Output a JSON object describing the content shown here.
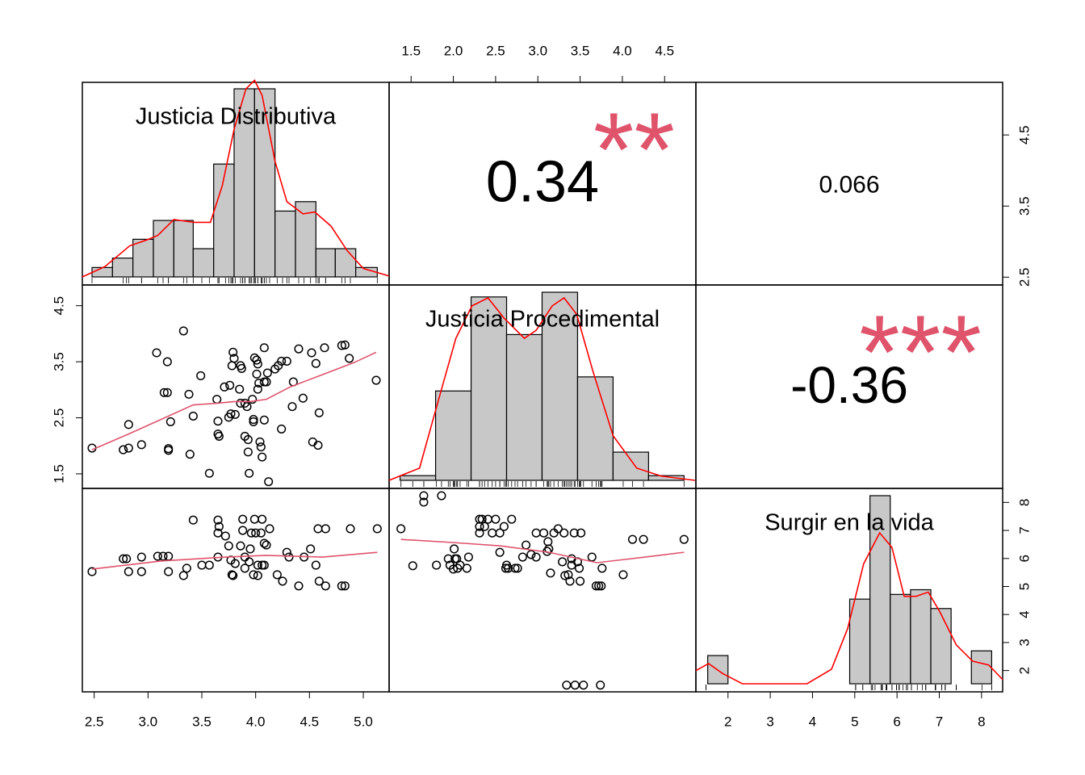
{
  "chart_data": {
    "type": "pairs",
    "bar_color": "#c8c8c8",
    "density_color": "#ff0000",
    "smooth_color": "#df536b",
    "star_color": "#df536b",
    "variables": [
      {
        "name": "Justicia Distributiva",
        "lim": [
          2.39,
          5.24
        ],
        "xticks": [
          2.5,
          {
            "value": 3,
            "label": "3.0"
          },
          3.5,
          {
            "value": 4,
            "label": "4.0"
          },
          4.5,
          {
            "value": 5,
            "label": "5.0"
          }
        ],
        "yticks": [
          2.5,
          3.5,
          4.5
        ],
        "bins": [
          2.48,
          2.67,
          2.86,
          3.05,
          3.24,
          3.42,
          3.61,
          3.8,
          3.99,
          4.18,
          4.37,
          4.56,
          4.74,
          4.93,
          5.13
        ],
        "counts": [
          1,
          2,
          4,
          6,
          6,
          3,
          12,
          20,
          20,
          7,
          8,
          3,
          3,
          1
        ],
        "density": {
          "x": [
            2.39,
            2.6,
            2.83,
            2.98,
            3.09,
            3.24,
            3.43,
            3.58,
            3.69,
            3.8,
            3.91,
            3.99,
            4.06,
            4.18,
            4.29,
            4.44,
            4.55,
            4.7,
            4.85,
            5.0,
            5.24
          ],
          "y": [
            0,
            1.1,
            3.3,
            3.9,
            4.4,
            6.1,
            5.8,
            5.8,
            9.7,
            15.7,
            20,
            20.9,
            19.3,
            12.3,
            8.0,
            6.7,
            6.9,
            5.4,
            2.8,
            0.9,
            0.1
          ]
        }
      },
      {
        "name": "Justicia Procedimental",
        "lim": [
          1.24,
          4.87
        ],
        "xticks": [
          1.5,
          {
            "value": 2,
            "label": "2.0"
          },
          2.5,
          {
            "value": 3,
            "label": "3.0"
          },
          3.5,
          {
            "value": 4,
            "label": "4.0"
          },
          4.5
        ],
        "yticks": [
          1.5,
          2.5,
          3.5,
          4.5
        ],
        "bins": [
          1.37,
          1.79,
          2.21,
          2.63,
          3.05,
          3.47,
          3.89,
          4.31,
          4.73
        ],
        "counts": [
          1,
          19,
          39,
          31,
          40,
          22,
          6,
          1
        ],
        "density": {
          "x": [
            1.24,
            1.6,
            1.84,
            2.03,
            2.22,
            2.41,
            2.6,
            2.84,
            2.98,
            3.17,
            3.31,
            3.46,
            3.65,
            3.89,
            4.17,
            4.46,
            4.86
          ],
          "y": [
            0,
            2.6,
            18.1,
            30.2,
            37.1,
            38.8,
            34.5,
            30.2,
            31.9,
            37.1,
            38.8,
            35.3,
            23.3,
            9.5,
            2.6,
            0.9,
            0
          ]
        }
      },
      {
        "name": "Surgir en la vida",
        "lim": [
          1.24,
          8.5
        ],
        "xticks": [
          2,
          3,
          4,
          5,
          6,
          7,
          8
        ],
        "yticks": [
          2,
          3,
          4,
          5,
          6,
          7,
          8
        ],
        "bins": [
          1.52,
          2.0,
          2.48,
          2.96,
          3.44,
          3.92,
          4.4,
          4.88,
          5.36,
          5.84,
          6.32,
          6.8,
          7.28,
          7.76,
          8.24
        ],
        "counts": [
          6,
          0,
          0,
          0,
          0,
          0,
          0,
          18,
          40,
          19,
          20,
          16,
          0,
          7
        ],
        "density": {
          "x": [
            1.24,
            1.54,
            1.87,
            2.34,
            3.87,
            4.45,
            4.83,
            5.21,
            5.59,
            5.88,
            6.17,
            6.45,
            6.74,
            7.02,
            7.4,
            7.79,
            8.17,
            8.5
          ],
          "y": [
            2.8,
            4.3,
            2.2,
            0,
            0,
            3.1,
            11.7,
            25.5,
            32.1,
            29.0,
            18.6,
            18.6,
            19.5,
            15.2,
            8.3,
            4.8,
            4.0,
            0.9
          ]
        }
      }
    ],
    "correlations": [
      {
        "value": 0.34,
        "stars": "**"
      },
      {
        "value": 0.066
      },
      {
        "value": -0.36,
        "stars": "***"
      }
    ],
    "scatter": [
      {
        "x": [
          2.48,
          2.77,
          2.82,
          2.82,
          2.94,
          3.08,
          3.15,
          3.18,
          3.19,
          3.19,
          3.18,
          3.21,
          3.33,
          3.38,
          3.39,
          3.42,
          3.49,
          3.57,
          3.64,
          3.65,
          3.65,
          3.66,
          3.71,
          3.75,
          3.76,
          3.77,
          3.78,
          3.79,
          3.8,
          3.81,
          3.85,
          3.86,
          3.86,
          3.87,
          3.9,
          3.9,
          3.92,
          3.93,
          3.93,
          3.94,
          3.97,
          3.98,
          3.98,
          3.99,
          4.01,
          4.01,
          4.02,
          4.02,
          4.03,
          4.04,
          4.05,
          4.06,
          4.08,
          4.08,
          4.08,
          4.1,
          4.11,
          4.12,
          4.18,
          4.21,
          4.24,
          4.24,
          4.29,
          4.34,
          4.35,
          4.4,
          4.44,
          4.52,
          4.53,
          4.56,
          4.58,
          4.59,
          4.64,
          4.8,
          4.83,
          4.87,
          5.12
        ],
        "y": [
          1.96,
          1.93,
          1.96,
          2.38,
          2.02,
          3.66,
          2.95,
          2.95,
          1.95,
          1.92,
          3.5,
          2.43,
          4.05,
          2.92,
          1.85,
          2.53,
          3.25,
          1.51,
          2.83,
          2.44,
          2.21,
          2.17,
          3.05,
          2.51,
          3.08,
          2.57,
          3.43,
          3.67,
          3.56,
          2.56,
          3.01,
          3.43,
          2.76,
          3.38,
          2.17,
          2.76,
          2.7,
          1.89,
          2.11,
          1.51,
          2.83,
          2.47,
          2.43,
          3.57,
          3.53,
          3.28,
          3.01,
          3.46,
          3.12,
          2.07,
          1.98,
          1.8,
          2.46,
          3.14,
          3.75,
          3.14,
          3.3,
          1.36,
          3.37,
          3.43,
          2.3,
          3.51,
          3.51,
          2.7,
          3.14,
          3.73,
          2.85,
          3.66,
          2.07,
          3.47,
          2.01,
          2.59,
          3.75,
          3.79,
          3.8,
          3.56,
          3.17
        ],
        "smooth": {
          "x": [
            2.48,
            2.82,
            3.12,
            3.42,
            3.65,
            3.8,
            3.95,
            4.1,
            4.32,
            4.62,
            4.92,
            5.12
          ],
          "y": [
            1.93,
            2.21,
            2.47,
            2.73,
            2.76,
            2.79,
            2.79,
            2.83,
            3.05,
            3.27,
            3.49,
            3.67
          ]
        }
      },
      {
        "x": [
          2.48,
          2.77,
          2.8,
          2.82,
          2.94,
          2.94,
          3.09,
          3.14,
          3.19,
          3.19,
          3.33,
          3.36,
          3.42,
          3.5,
          3.57,
          3.65,
          3.65,
          3.65,
          3.66,
          3.72,
          3.75,
          3.77,
          3.78,
          3.79,
          3.81,
          3.86,
          3.88,
          3.88,
          3.9,
          3.9,
          3.94,
          3.95,
          3.96,
          3.98,
          3.99,
          4.0,
          4.02,
          4.02,
          4.05,
          4.06,
          4.06,
          4.08,
          4.08,
          4.1,
          4.13,
          4.2,
          4.25,
          4.29,
          4.31,
          4.4,
          4.45,
          4.51,
          4.56,
          4.58,
          4.59,
          4.65,
          4.65,
          4.8,
          4.83,
          4.88,
          5.13
        ],
        "y": [
          5.53,
          5.99,
          5.99,
          5.53,
          6.05,
          5.53,
          6.08,
          6.08,
          6.08,
          5.53,
          5.39,
          5.65,
          7.37,
          5.76,
          5.76,
          6.05,
          6.91,
          7.37,
          7.14,
          6.8,
          6.45,
          5.94,
          5.42,
          5.39,
          5.82,
          6.45,
          7.4,
          7.0,
          5.65,
          6.05,
          5.88,
          6.34,
          6.91,
          5.42,
          7.4,
          6.91,
          5.39,
          5.76,
          6.91,
          7.4,
          5.76,
          5.76,
          6.54,
          6.48,
          7.06,
          5.42,
          5.19,
          6.22,
          6.05,
          5.02,
          6.05,
          6.34,
          5.76,
          7.06,
          5.19,
          7.06,
          5.02,
          5.02,
          5.02,
          7.06,
          7.06
        ],
        "smooth": {
          "x": [
            2.48,
            3.12,
            3.72,
            4.1,
            4.62,
            5.13
          ],
          "y": [
            5.62,
            5.91,
            6.05,
            6.11,
            6.05,
            6.22
          ]
        }
      },
      {
        "x": [
          1.38,
          1.52,
          1.65,
          1.65,
          1.86,
          1.8,
          1.94,
          1.96,
          2.0,
          2.01,
          2.02,
          2.04,
          2.05,
          2.08,
          2.16,
          2.18,
          2.31,
          2.31,
          2.31,
          2.34,
          2.37,
          2.41,
          2.46,
          2.5,
          2.55,
          2.55,
          2.6,
          2.62,
          2.63,
          2.65,
          2.69,
          2.73,
          2.76,
          2.82,
          2.86,
          2.92,
          2.98,
          2.98,
          3.07,
          3.11,
          3.12,
          3.13,
          3.15,
          3.19,
          3.24,
          3.29,
          3.31,
          3.32,
          3.34,
          3.36,
          3.38,
          3.4,
          3.4,
          3.43,
          3.44,
          3.47,
          3.49,
          3.5,
          3.51,
          3.54,
          3.64,
          3.69,
          3.72,
          3.74,
          3.75,
          3.76,
          4.01,
          4.12,
          4.25,
          4.73
        ],
        "y": [
          7.06,
          5.74,
          8.01,
          8.24,
          8.24,
          5.76,
          5.99,
          5.76,
          5.62,
          6.34,
          5.99,
          5.99,
          5.65,
          5.76,
          5.65,
          6.05,
          7.4,
          6.91,
          7.14,
          7.4,
          7.14,
          7.4,
          6.91,
          7.4,
          6.91,
          6.22,
          7.14,
          5.65,
          5.76,
          5.65,
          7.4,
          5.65,
          5.65,
          6.05,
          6.48,
          6.14,
          6.91,
          6.05,
          6.91,
          6.25,
          6.6,
          6.34,
          5.48,
          6.91,
          7.06,
          5.88,
          6.91,
          5.39,
          1.48,
          5.42,
          5.19,
          5.99,
          5.76,
          6.91,
          1.48,
          5.88,
          5.65,
          5.19,
          6.91,
          1.48,
          6.05,
          5.02,
          5.02,
          1.48,
          5.02,
          5.65,
          5.42,
          6.68,
          6.68,
          6.68
        ],
        "smooth": {
          "x": [
            1.38,
            1.99,
            2.56,
            3.13,
            3.7,
            4.27,
            4.73
          ],
          "y": [
            6.68,
            6.57,
            6.45,
            6.22,
            5.85,
            6.05,
            6.22
          ]
        }
      }
    ]
  }
}
